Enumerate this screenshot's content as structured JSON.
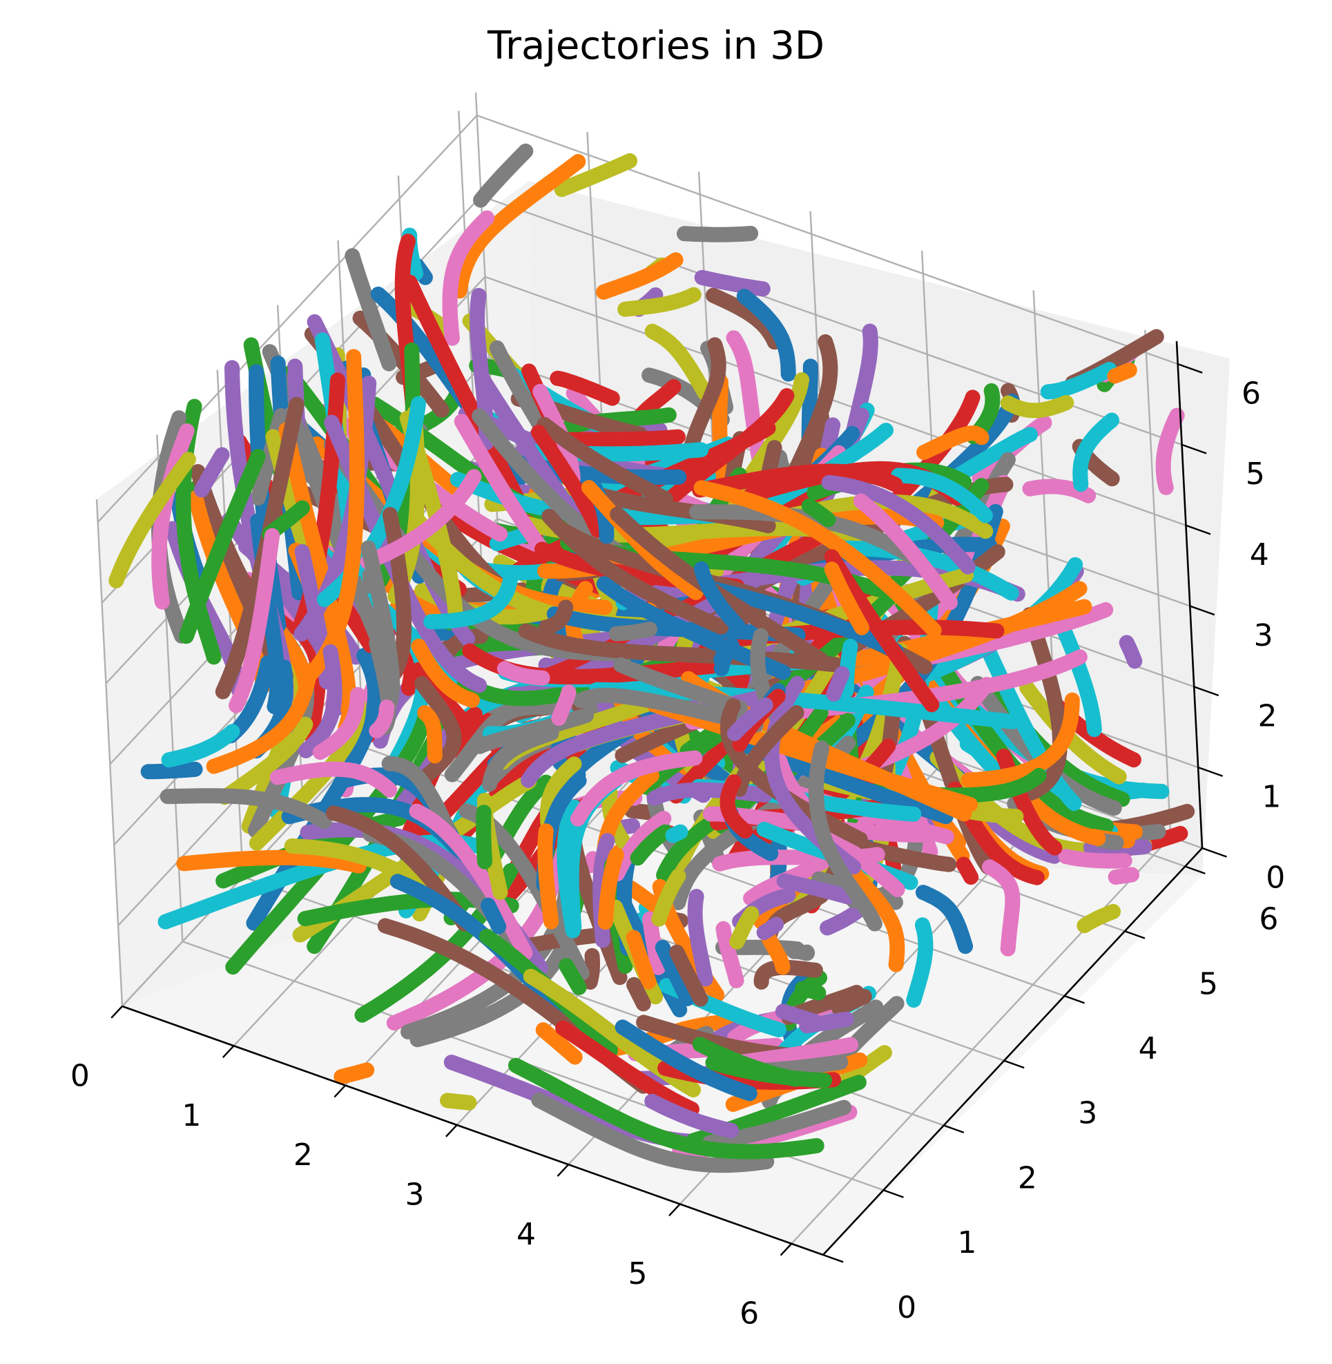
{
  "chart_data": {
    "type": "scatter3d",
    "title": "Trajectories in 3D",
    "xlabel": "",
    "ylabel": "",
    "zlabel": "",
    "xlim": [
      0,
      6.283
    ],
    "ylim": [
      0,
      6.283
    ],
    "zlim": [
      0,
      6.283
    ],
    "x_ticks": [
      "0",
      "1",
      "2",
      "3",
      "4",
      "5",
      "6"
    ],
    "y_ticks": [
      "0",
      "1",
      "2",
      "3",
      "4",
      "5",
      "6"
    ],
    "z_ticks": [
      "0",
      "1",
      "2",
      "3",
      "4",
      "5",
      "6"
    ],
    "grid": true,
    "colors": [
      "#1f77b4",
      "#ff7f0e",
      "#2ca02c",
      "#d62728",
      "#9467bd",
      "#8c564b",
      "#e377c2",
      "#7f7f7f",
      "#bcbd22",
      "#17becf"
    ],
    "series_count": 600,
    "note_trajectories": "Hundreds of particle trajectories filling the cube 0..2π on each axis, drawn as thick marker streaks in the 10-colour cycle."
  }
}
